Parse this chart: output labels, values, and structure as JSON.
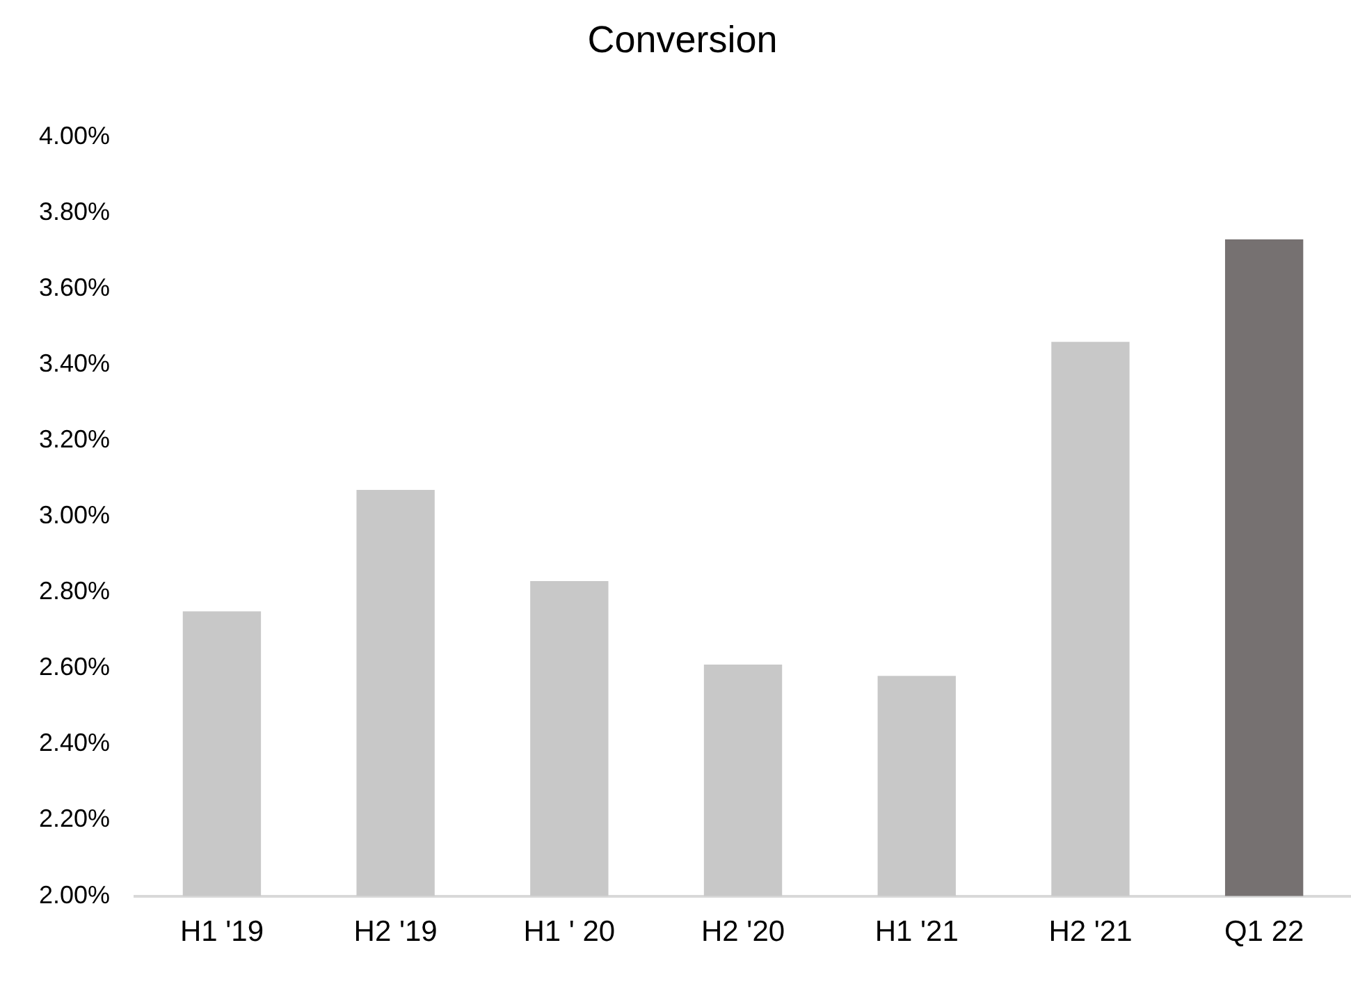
{
  "chart_data": {
    "type": "bar",
    "title": "Conversion",
    "categories": [
      "H1 '19",
      "H2 '19",
      "H1 ' 20",
      "H2 '20",
      "H1 '21",
      "H2 '21",
      "Q1 22"
    ],
    "values": [
      2.75,
      3.07,
      2.83,
      2.61,
      2.58,
      3.46,
      3.73
    ],
    "colors": [
      "#c8c8c8",
      "#c8c8c8",
      "#c8c8c8",
      "#c8c8c8",
      "#c8c8c8",
      "#c8c8c8",
      "#767171"
    ],
    "ylim": [
      2,
      4
    ],
    "yticks": [
      {
        "value": 2,
        "label": "2.00%"
      },
      {
        "value": 2.2,
        "label": "2.20%"
      },
      {
        "value": 2.4,
        "label": "2.40%"
      },
      {
        "value": 2.6,
        "label": "2.60%"
      },
      {
        "value": 2.8,
        "label": "2.80%"
      },
      {
        "value": 3,
        "label": "3.00%"
      },
      {
        "value": 3.2,
        "label": "3.20%"
      },
      {
        "value": 3.4,
        "label": "3.40%"
      },
      {
        "value": 3.6,
        "label": "3.60%"
      },
      {
        "value": 3.8,
        "label": "3.80%"
      },
      {
        "value": 4,
        "label": "4.00%"
      }
    ],
    "grid": false,
    "legend": false
  }
}
